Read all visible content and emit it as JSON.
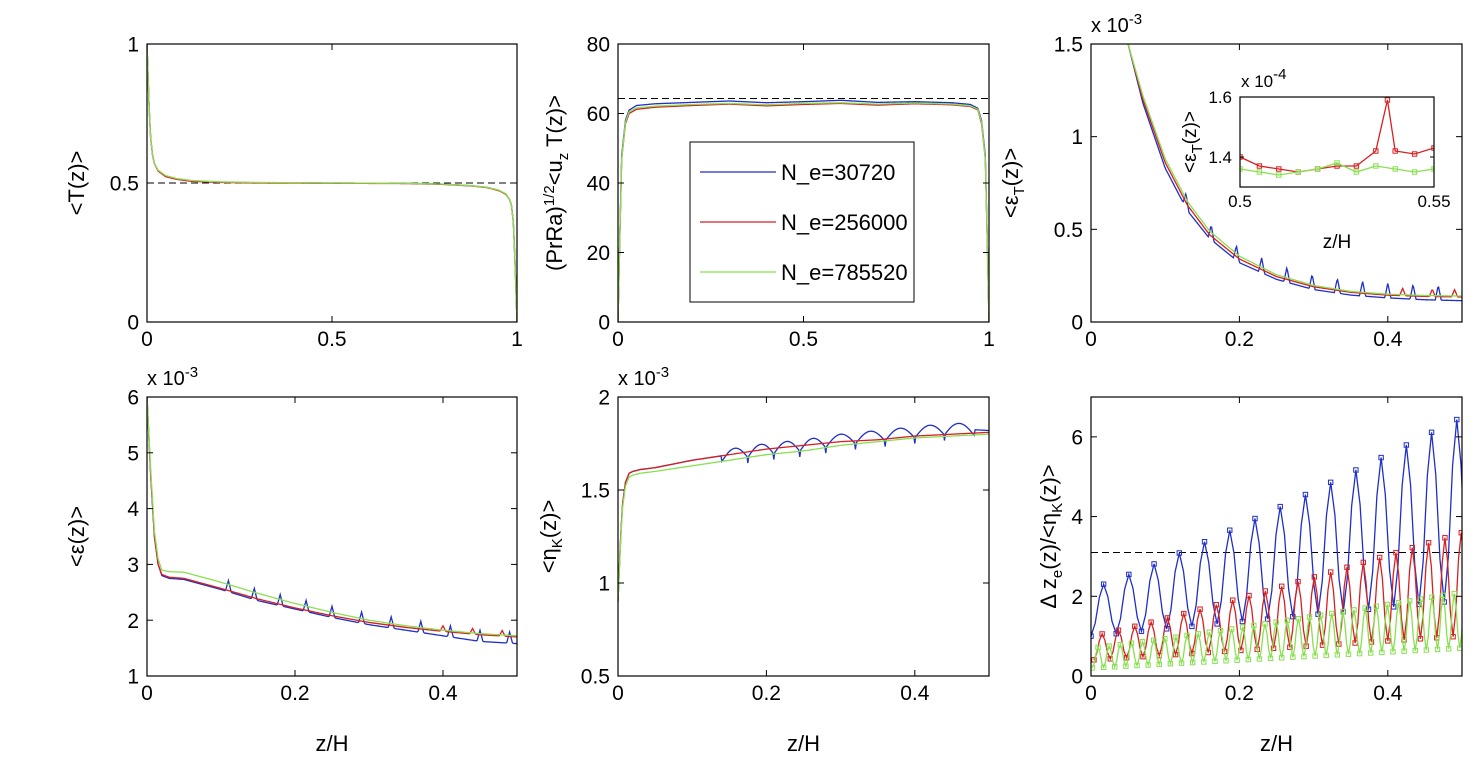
{
  "chart_data": [
    {
      "id": "p1",
      "type": "line",
      "ylabel": "<T(z)>",
      "xlabel": "",
      "xlim": [
        0,
        1
      ],
      "ylim": [
        0,
        1
      ],
      "xticks": [
        "0",
        "0.5",
        "1"
      ],
      "xtick_values": [
        0,
        0.5,
        1
      ],
      "yticks": [
        "0",
        "0.5",
        "1"
      ],
      "ytick_values": [
        0,
        0.5,
        1
      ],
      "multiplier": "",
      "ref_line": 0.5,
      "series": [
        {
          "name": "N_e=30720",
          "color": "#1f2fc8",
          "x": [
            0,
            0.003,
            0.006,
            0.01,
            0.015,
            0.02,
            0.03,
            0.05,
            0.08,
            0.12,
            0.2,
            0.3,
            0.5,
            0.7,
            0.8,
            0.88,
            0.92,
            0.95,
            0.97,
            0.98,
            0.985,
            0.99,
            0.994,
            0.997,
            1
          ],
          "y": [
            1,
            0.88,
            0.76,
            0.66,
            0.6,
            0.57,
            0.545,
            0.525,
            0.515,
            0.508,
            0.503,
            0.501,
            0.5,
            0.499,
            0.496,
            0.49,
            0.484,
            0.474,
            0.46,
            0.44,
            0.42,
            0.36,
            0.24,
            0.12,
            0
          ]
        },
        {
          "name": "N_e=256000",
          "color": "#d82020",
          "x": [
            0,
            0.003,
            0.006,
            0.01,
            0.015,
            0.02,
            0.03,
            0.05,
            0.08,
            0.12,
            0.2,
            0.3,
            0.5,
            0.7,
            0.8,
            0.88,
            0.92,
            0.95,
            0.97,
            0.98,
            0.985,
            0.99,
            0.994,
            0.997,
            1
          ],
          "y": [
            1,
            0.88,
            0.76,
            0.66,
            0.6,
            0.57,
            0.543,
            0.523,
            0.513,
            0.506,
            0.502,
            0.5,
            0.499,
            0.498,
            0.495,
            0.489,
            0.483,
            0.473,
            0.459,
            0.44,
            0.42,
            0.36,
            0.24,
            0.12,
            0
          ]
        },
        {
          "name": "N_e=785520",
          "color": "#88e050",
          "x": [
            0,
            0.003,
            0.006,
            0.01,
            0.015,
            0.02,
            0.03,
            0.05,
            0.08,
            0.12,
            0.2,
            0.3,
            0.5,
            0.7,
            0.8,
            0.88,
            0.92,
            0.95,
            0.97,
            0.98,
            0.985,
            0.99,
            0.994,
            0.997,
            1
          ],
          "y": [
            1,
            0.88,
            0.76,
            0.66,
            0.6,
            0.57,
            0.546,
            0.527,
            0.516,
            0.509,
            0.504,
            0.502,
            0.5,
            0.499,
            0.496,
            0.49,
            0.484,
            0.475,
            0.461,
            0.44,
            0.42,
            0.36,
            0.24,
            0.12,
            0
          ]
        }
      ]
    },
    {
      "id": "p2",
      "type": "line",
      "ylabel": "(PrRa)^{1/2}<u_z T(z)>",
      "xlabel": "",
      "xlim": [
        0,
        1
      ],
      "ylim": [
        0,
        80
      ],
      "xticks": [
        "0",
        "0.5",
        "1"
      ],
      "xtick_values": [
        0,
        0.5,
        1
      ],
      "yticks": [
        "0",
        "20",
        "40",
        "60",
        "80"
      ],
      "ytick_values": [
        0,
        20,
        40,
        60,
        80
      ],
      "multiplier": "",
      "ref_line": 64.3,
      "legend": {
        "placement": "center",
        "entries": [
          "N_e=30720",
          "N_e=256000",
          "N_e=785520"
        ]
      },
      "series": [
        {
          "name": "N_e=30720",
          "color": "#1f2fc8",
          "x": [
            0,
            0.005,
            0.01,
            0.02,
            0.03,
            0.05,
            0.1,
            0.2,
            0.3,
            0.4,
            0.5,
            0.6,
            0.7,
            0.8,
            0.9,
            0.95,
            0.97,
            0.98,
            0.99,
            0.995,
            1
          ],
          "y": [
            0,
            25,
            48,
            58,
            61,
            62.3,
            62.8,
            63.2,
            63.6,
            63.1,
            63.4,
            63.8,
            63.2,
            63.4,
            63.1,
            62.6,
            61.5,
            58,
            48,
            25,
            0
          ]
        },
        {
          "name": "N_e=256000",
          "color": "#d82020",
          "x": [
            0,
            0.005,
            0.01,
            0.02,
            0.03,
            0.05,
            0.1,
            0.2,
            0.3,
            0.4,
            0.5,
            0.6,
            0.7,
            0.8,
            0.9,
            0.95,
            0.97,
            0.98,
            0.99,
            0.995,
            1
          ],
          "y": [
            0,
            25,
            47,
            57,
            60,
            61.2,
            61.8,
            62.3,
            62.7,
            62.2,
            62.6,
            62.9,
            62.4,
            62.8,
            62.5,
            62,
            61,
            57,
            47,
            25,
            0
          ]
        },
        {
          "name": "N_e=785520",
          "color": "#88e050",
          "x": [
            0,
            0.005,
            0.01,
            0.02,
            0.03,
            0.05,
            0.1,
            0.2,
            0.3,
            0.4,
            0.5,
            0.6,
            0.7,
            0.8,
            0.9,
            0.95,
            0.97,
            0.98,
            0.99,
            0.995,
            1
          ],
          "y": [
            0,
            25,
            47,
            57.5,
            60.5,
            61.6,
            62.1,
            62.6,
            62.9,
            62.5,
            62.9,
            63.1,
            62.7,
            63,
            62.7,
            62.2,
            61.2,
            57.5,
            47,
            25,
            0
          ]
        }
      ]
    },
    {
      "id": "p3",
      "type": "line",
      "ylabel": "<ε_T(z)>",
      "xlabel": "",
      "xlim": [
        0,
        0.5
      ],
      "ylim": [
        0,
        1.5
      ],
      "xticks": [
        "0",
        "0.2",
        "0.4"
      ],
      "xtick_values": [
        0,
        0.2,
        0.4
      ],
      "yticks": [
        "0",
        "0.5",
        "1",
        "1.5"
      ],
      "ytick_values": [
        0,
        0.5,
        1,
        1.5
      ],
      "multiplier": "x 10^{-3}",
      "series": [
        {
          "name": "N_e=30720",
          "color": "#1f2fc8",
          "x": [
            0.05,
            0.07,
            0.1,
            0.13,
            0.16,
            0.2,
            0.25,
            0.3,
            0.35,
            0.4,
            0.45,
            0.5
          ],
          "y": [
            1.5,
            1.18,
            0.83,
            0.6,
            0.45,
            0.32,
            0.23,
            0.175,
            0.145,
            0.13,
            0.12,
            0.115
          ],
          "spikes": [
            0.128,
            0.162,
            0.196,
            0.23,
            0.264,
            0.298,
            0.332,
            0.366,
            0.4,
            0.434,
            0.468
          ],
          "spike_height": 0.08
        },
        {
          "name": "N_e=256000",
          "color": "#d82020",
          "x": [
            0.05,
            0.07,
            0.1,
            0.13,
            0.16,
            0.2,
            0.25,
            0.3,
            0.35,
            0.4,
            0.45,
            0.5
          ],
          "y": [
            1.5,
            1.2,
            0.86,
            0.63,
            0.47,
            0.34,
            0.245,
            0.19,
            0.16,
            0.145,
            0.138,
            0.135
          ],
          "spikes": [
            0.42,
            0.46,
            0.49
          ],
          "spike_height": 0.04
        },
        {
          "name": "N_e=785520",
          "color": "#88e050",
          "x": [
            0.05,
            0.07,
            0.1,
            0.13,
            0.16,
            0.2,
            0.25,
            0.3,
            0.35,
            0.4,
            0.45,
            0.5
          ],
          "y": [
            1.5,
            1.22,
            0.88,
            0.65,
            0.49,
            0.355,
            0.255,
            0.197,
            0.165,
            0.15,
            0.143,
            0.14
          ],
          "spikes": [],
          "spike_height": 0
        }
      ]
    },
    {
      "id": "p3inset",
      "type": "line",
      "ylabel": "<ε_T(z)>",
      "xlabel": "z/H",
      "xlim": [
        0.5,
        0.55
      ],
      "ylim": [
        1.3,
        1.6
      ],
      "xticks": [
        "0.5",
        "0.55"
      ],
      "xtick_values": [
        0.5,
        0.55
      ],
      "yticks": [
        "1.4",
        "1.6"
      ],
      "ytick_values": [
        1.4,
        1.6
      ],
      "multiplier": "x 10^{-4}",
      "series": [
        {
          "name": "N_e=256000",
          "color": "#d82020",
          "markers": true,
          "x": [
            0.5,
            0.505,
            0.51,
            0.515,
            0.52,
            0.525,
            0.53,
            0.535,
            0.538,
            0.54,
            0.545,
            0.55
          ],
          "y": [
            1.4,
            1.37,
            1.36,
            1.35,
            1.36,
            1.37,
            1.37,
            1.42,
            1.59,
            1.42,
            1.41,
            1.43
          ]
        },
        {
          "name": "N_e=785520",
          "color": "#88e050",
          "markers": true,
          "x": [
            0.5,
            0.505,
            0.51,
            0.515,
            0.52,
            0.525,
            0.53,
            0.535,
            0.54,
            0.545,
            0.55
          ],
          "y": [
            1.36,
            1.35,
            1.34,
            1.35,
            1.36,
            1.38,
            1.35,
            1.37,
            1.36,
            1.35,
            1.36
          ]
        }
      ]
    },
    {
      "id": "p4",
      "type": "line",
      "ylabel": "<ε(z)>",
      "xlabel": "z/H",
      "xlim": [
        0,
        0.5
      ],
      "ylim": [
        1,
        6
      ],
      "xticks": [
        "0",
        "0.2",
        "0.4"
      ],
      "xtick_values": [
        0,
        0.2,
        0.4
      ],
      "yticks": [
        "1",
        "2",
        "3",
        "4",
        "5",
        "6"
      ],
      "ytick_values": [
        1,
        2,
        3,
        4,
        5,
        6
      ],
      "multiplier": "x 10^{-3}",
      "series": [
        {
          "name": "N_e=30720",
          "color": "#1f2fc8",
          "x": [
            0,
            0.005,
            0.01,
            0.015,
            0.02,
            0.03,
            0.05,
            0.1,
            0.15,
            0.2,
            0.25,
            0.3,
            0.35,
            0.4,
            0.45,
            0.5
          ],
          "y": [
            6,
            4.6,
            3.5,
            3.0,
            2.8,
            2.75,
            2.73,
            2.55,
            2.35,
            2.2,
            2.05,
            1.92,
            1.82,
            1.72,
            1.62,
            1.58
          ],
          "spikes": [
            0.11,
            0.145,
            0.18,
            0.215,
            0.25,
            0.29,
            0.33,
            0.37,
            0.41,
            0.45,
            0.49
          ],
          "spike_height": 0.2
        },
        {
          "name": "N_e=256000",
          "color": "#d82020",
          "x": [
            0,
            0.005,
            0.01,
            0.015,
            0.02,
            0.03,
            0.05,
            0.1,
            0.15,
            0.2,
            0.25,
            0.3,
            0.35,
            0.4,
            0.45,
            0.5
          ],
          "y": [
            6,
            4.6,
            3.5,
            3.0,
            2.82,
            2.77,
            2.75,
            2.57,
            2.38,
            2.22,
            2.08,
            1.96,
            1.87,
            1.8,
            1.74,
            1.7
          ],
          "spikes": [
            0.4,
            0.44,
            0.48
          ],
          "spike_height": 0.1
        },
        {
          "name": "N_e=785520",
          "color": "#88e050",
          "x": [
            0,
            0.005,
            0.01,
            0.015,
            0.02,
            0.03,
            0.05,
            0.1,
            0.15,
            0.2,
            0.25,
            0.3,
            0.35,
            0.4,
            0.45,
            0.5
          ],
          "y": [
            6,
            4.7,
            3.6,
            3.1,
            2.9,
            2.87,
            2.86,
            2.68,
            2.48,
            2.3,
            2.14,
            2.0,
            1.9,
            1.82,
            1.76,
            1.72
          ],
          "spikes": [],
          "spike_height": 0
        }
      ]
    },
    {
      "id": "p5",
      "type": "line",
      "ylabel": "<η_K(z)>",
      "xlabel": "z/H",
      "xlim": [
        0,
        0.5
      ],
      "ylim": [
        0.5,
        2
      ],
      "xticks": [
        "0",
        "0.2",
        "0.4"
      ],
      "xtick_values": [
        0,
        0.2,
        0.4
      ],
      "yticks": [
        "0.5",
        "1",
        "1.5",
        "2"
      ],
      "ytick_values": [
        0.5,
        1,
        1.5,
        2
      ],
      "multiplier": "x 10^{-3}",
      "series": [
        {
          "name": "N_e=30720",
          "color": "#1f2fc8",
          "x": [
            0,
            0.003,
            0.006,
            0.01,
            0.015,
            0.02,
            0.03,
            0.05,
            0.1,
            0.15,
            0.2,
            0.25,
            0.3,
            0.35,
            0.4,
            0.45,
            0.5
          ],
          "y": [
            0.9,
            1.2,
            1.42,
            1.54,
            1.59,
            1.6,
            1.61,
            1.62,
            1.66,
            1.69,
            1.72,
            1.74,
            1.77,
            1.79,
            1.81,
            1.83,
            1.82
          ],
          "scallops": [
            0.14,
            0.175,
            0.21,
            0.245,
            0.28,
            0.32,
            0.36,
            0.4,
            0.44,
            0.48
          ],
          "scallop_depth": 0.06
        },
        {
          "name": "N_e=256000",
          "color": "#d82020",
          "x": [
            0,
            0.003,
            0.006,
            0.01,
            0.015,
            0.02,
            0.03,
            0.05,
            0.1,
            0.15,
            0.2,
            0.25,
            0.3,
            0.35,
            0.4,
            0.45,
            0.5
          ],
          "y": [
            0.9,
            1.2,
            1.42,
            1.54,
            1.59,
            1.6,
            1.61,
            1.62,
            1.66,
            1.69,
            1.72,
            1.74,
            1.76,
            1.77,
            1.79,
            1.8,
            1.81
          ],
          "scallops": [],
          "scallop_depth": 0
        },
        {
          "name": "N_e=785520",
          "color": "#88e050",
          "x": [
            0,
            0.003,
            0.006,
            0.01,
            0.015,
            0.02,
            0.03,
            0.05,
            0.1,
            0.15,
            0.2,
            0.25,
            0.3,
            0.35,
            0.4,
            0.45,
            0.5
          ],
          "y": [
            0.9,
            1.18,
            1.4,
            1.52,
            1.57,
            1.58,
            1.59,
            1.6,
            1.63,
            1.66,
            1.69,
            1.71,
            1.74,
            1.76,
            1.78,
            1.79,
            1.8
          ],
          "scallops": [],
          "scallop_depth": 0
        }
      ]
    },
    {
      "id": "p6",
      "type": "line",
      "ylabel": "Δ z_e(z)/<η_K(z)>",
      "xlabel": "z/H",
      "xlim": [
        0,
        0.5
      ],
      "ylim": [
        0,
        7
      ],
      "xticks": [
        "0",
        "0.2",
        "0.4"
      ],
      "xtick_values": [
        0,
        0.2,
        0.4
      ],
      "yticks": [
        "0",
        "2",
        "4",
        "6"
      ],
      "ytick_values": [
        0,
        2,
        4,
        6
      ],
      "multiplier": "",
      "ref_line": 3.1,
      "series": [
        {
          "name": "N_e=30720",
          "color": "#1f2fc8",
          "markers": true,
          "period": 0.034,
          "phase": 0.0,
          "min_start": 1.0,
          "min_end": 1.9,
          "max_start": 2.2,
          "max_end": 6.5
        },
        {
          "name": "N_e=256000",
          "color": "#d82020",
          "markers": true,
          "period": 0.022,
          "phase": 0.004,
          "min_start": 0.4,
          "min_end": 1.0,
          "max_start": 1.0,
          "max_end": 3.6
        },
        {
          "name": "N_e=785520",
          "color": "#88e050",
          "markers": true,
          "period": 0.015,
          "phase": 0.002,
          "min_start": 0.2,
          "min_end": 0.7,
          "max_start": 0.7,
          "max_end": 2.1
        }
      ]
    }
  ]
}
